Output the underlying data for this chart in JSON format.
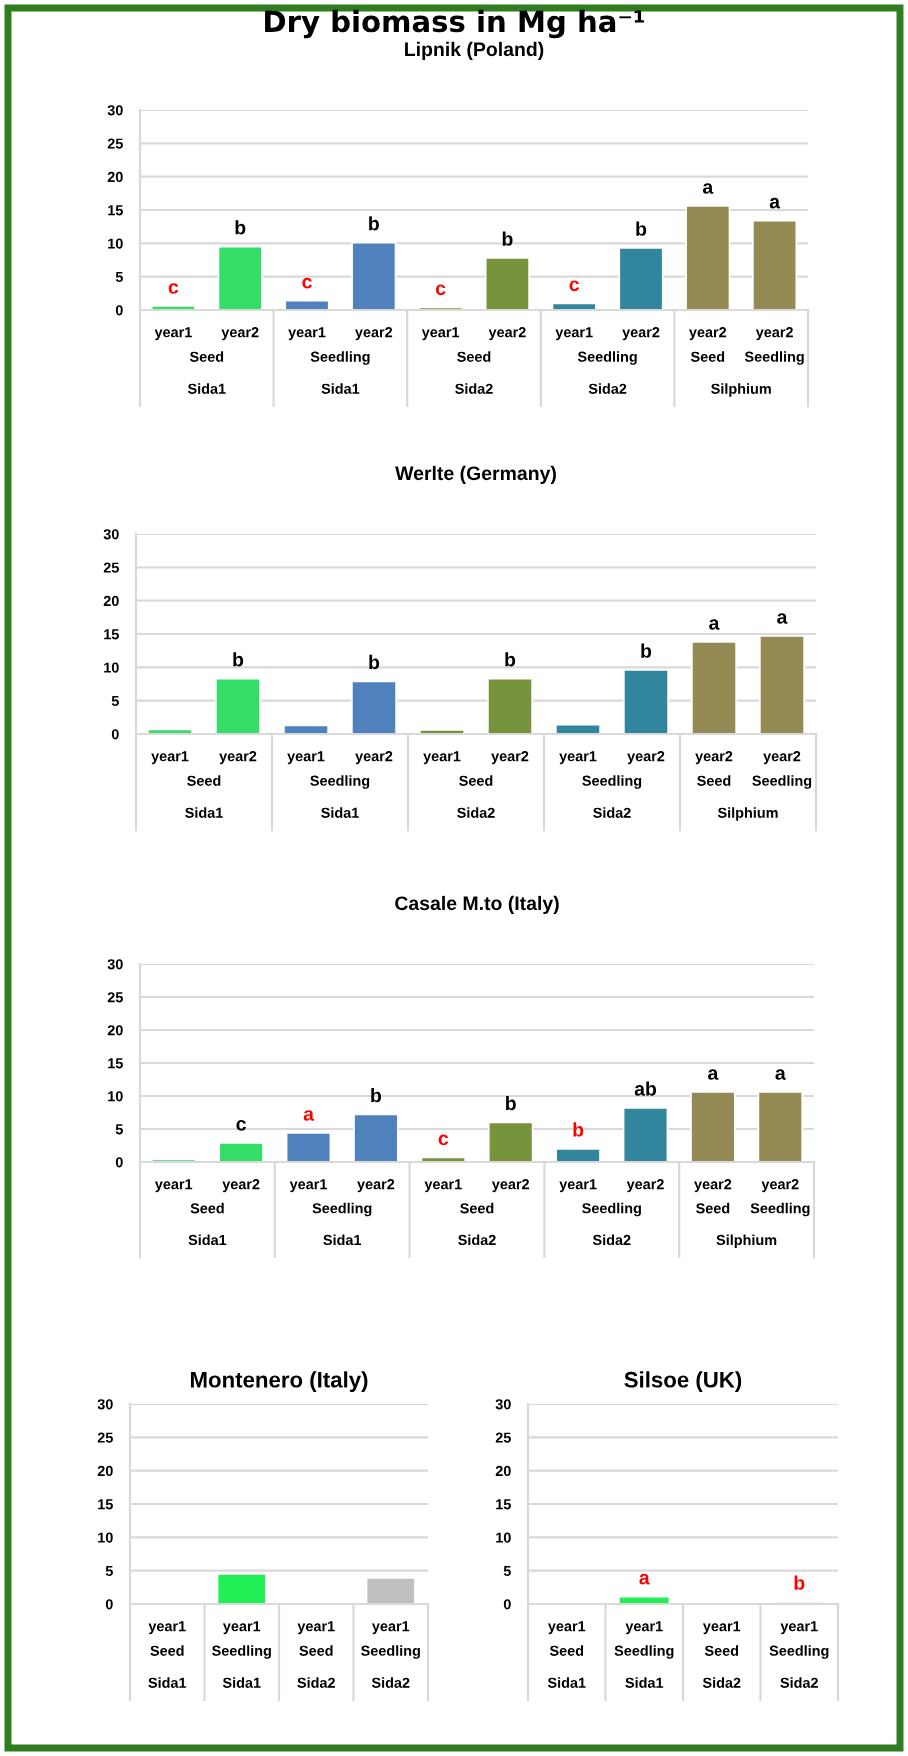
{
  "chart_data": [
    {
      "type": "bar",
      "title": "Dry biomass in Mg ha⁻¹",
      "subtitle": "Lipnik (Poland)",
      "categories": [
        "year1",
        "year2",
        "year1",
        "year2",
        "year1",
        "year2",
        "year1",
        "year2",
        "year2",
        "year2"
      ],
      "values": [
        0.6,
        9.5,
        1.4,
        10.1,
        0.4,
        7.8,
        1.0,
        9.3,
        15.6,
        13.4
      ],
      "colors": [
        "#33dd66",
        "#33dd66",
        "#4f81bd",
        "#4f81bd",
        "#77933c",
        "#77933c",
        "#31859c",
        "#31859c",
        "#948a54",
        "#948a54"
      ],
      "value_labels": [
        "c",
        "b",
        "c",
        "b",
        "c",
        "b",
        "c",
        "b",
        "a",
        "a"
      ],
      "annotations": [
        "Seed",
        "Seedling",
        "Seed",
        "Seedling",
        "Seed",
        "Seedling",
        "Sida1",
        "Sida1",
        "Sida2",
        "Sida2",
        "Silphium"
      ],
      "ylim": [
        0,
        30
      ],
      "yticks": [
        0,
        5,
        10,
        15,
        20,
        25,
        30
      ],
      "grid": "y"
    },
    {
      "type": "bar",
      "title": "Werlte (Germany)",
      "categories": [
        "year1",
        "year2",
        "year1",
        "year2",
        "year1",
        "year2",
        "year1",
        "year2",
        "year2",
        "year2"
      ],
      "values": [
        0.7,
        8.3,
        1.3,
        7.9,
        0.6,
        8.3,
        1.4,
        9.6,
        13.8,
        14.7
      ],
      "colors": [
        "#33dd66",
        "#33dd66",
        "#4f81bd",
        "#4f81bd",
        "#77933c",
        "#77933c",
        "#31859c",
        "#31859c",
        "#948a54",
        "#948a54"
      ],
      "value_labels": [
        null,
        "b",
        null,
        "b",
        null,
        "b",
        null,
        "b",
        "a",
        "a"
      ],
      "annotations": [
        "Seed",
        "Seedling",
        "Seed",
        "Seedling",
        "Seed",
        "Seedling",
        "Sida1",
        "Sida1",
        "Sida2",
        "Sida2",
        "Silphium"
      ],
      "ylim": [
        0,
        30
      ],
      "yticks": [
        0,
        5,
        10,
        15,
        20,
        25,
        30
      ],
      "grid": "y"
    },
    {
      "type": "bar",
      "title": "Casale M.to (Italy)",
      "categories": [
        "year1",
        "year2",
        "year1",
        "year2",
        "year1",
        "year2",
        "year1",
        "year2",
        "year2",
        "year2"
      ],
      "values": [
        0.4,
        2.9,
        4.4,
        7.2,
        0.7,
        6.0,
        2.0,
        8.2,
        10.6,
        10.6
      ],
      "colors": [
        "#33dd66",
        "#33dd66",
        "#4f81bd",
        "#4f81bd",
        "#77933c",
        "#77933c",
        "#31859c",
        "#31859c",
        "#948a54",
        "#948a54"
      ],
      "value_labels": [
        null,
        "c",
        "a",
        "b",
        "c",
        "b",
        "b",
        "ab",
        "a",
        "a"
      ],
      "annotations": [
        "Seed",
        "Seedling",
        "Seed",
        "Seedling",
        "Seed",
        "Seedling",
        "Sida1",
        "Sida1",
        "Sida2",
        "Sida2",
        "Silphium"
      ],
      "ylim": [
        0,
        30
      ],
      "yticks": [
        0,
        5,
        10,
        15,
        20,
        25,
        30
      ],
      "grid": "y"
    },
    {
      "type": "bar",
      "title": "Montenero (Italy)",
      "categories": [
        "year1",
        "year1",
        "year1",
        "year1"
      ],
      "values": [
        null,
        4.5,
        null,
        3.9
      ],
      "colors": [
        "#22ee55",
        "#22ee55",
        "#c0c0c0",
        "#c0c0c0"
      ],
      "annotations": [
        "Seed",
        "Seedling",
        "Seed",
        "Seedling",
        "Sida1",
        "Sida1",
        "Sida2",
        "Sida2"
      ],
      "ylim": [
        0,
        30
      ],
      "yticks": [
        0,
        5,
        10,
        15,
        20,
        25,
        30
      ],
      "grid": "y"
    },
    {
      "type": "bar",
      "title": "Silsoe (UK)",
      "categories": [
        "year1",
        "year1",
        "year1",
        "year1"
      ],
      "values": [
        null,
        1.1,
        null,
        0.3
      ],
      "colors": [
        "#22ee55",
        "#22ee55",
        "#c0c0c0",
        "#c0c0c0"
      ],
      "value_labels": [
        null,
        "a",
        null,
        "b"
      ],
      "annotations": [
        "Seed",
        "Seedling",
        "Seed",
        "Seedling",
        "Sida1",
        "Sida1",
        "Sida2",
        "Sida2"
      ],
      "ylim": [
        0,
        30
      ],
      "yticks": [
        0,
        5,
        10,
        15,
        20,
        25,
        30
      ],
      "grid": "y"
    }
  ]
}
